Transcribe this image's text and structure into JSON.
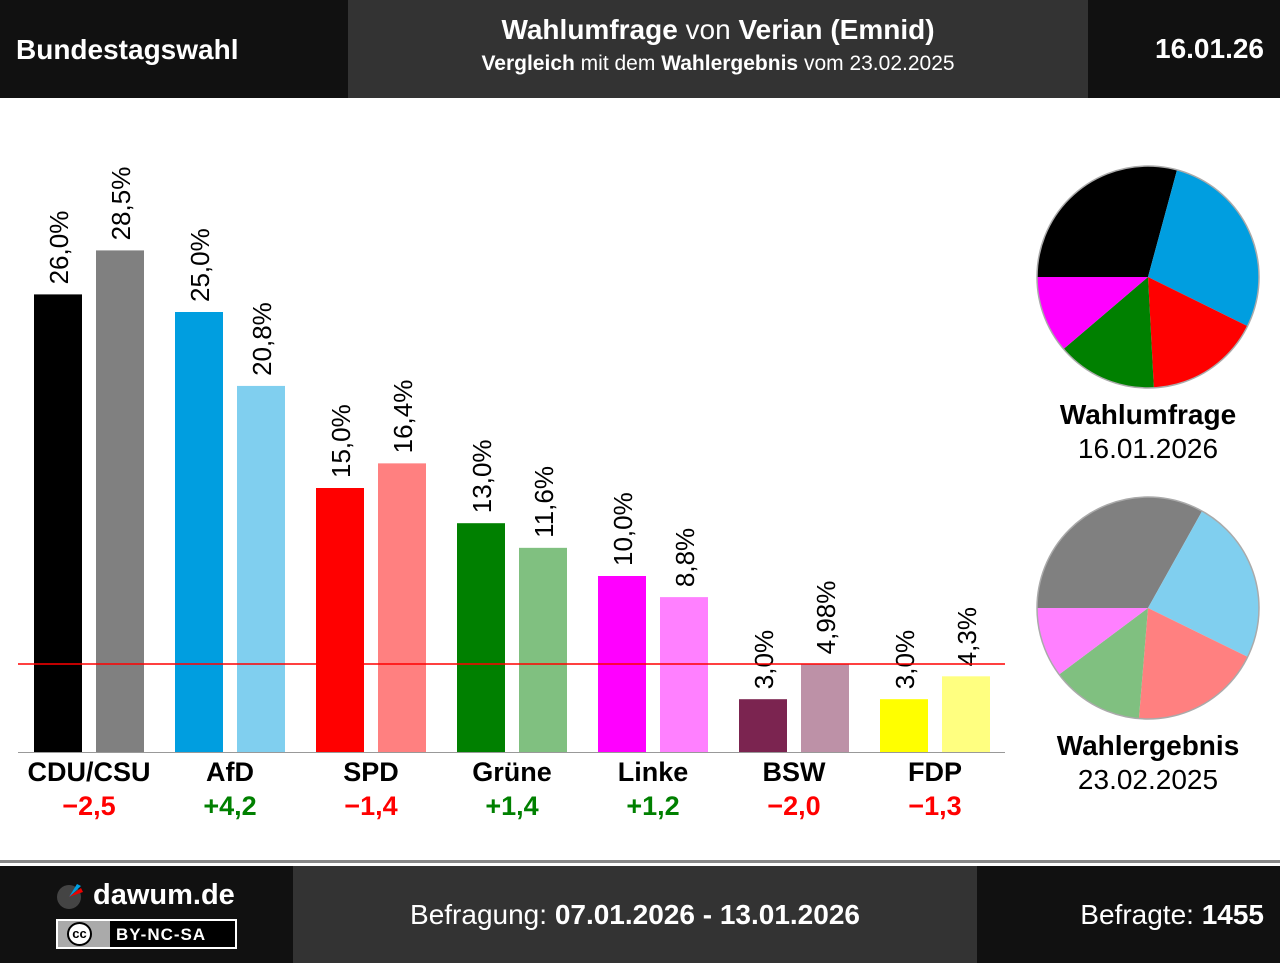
{
  "header": {
    "left": "Bundestagswahl",
    "title_bold1": "Wahlumfrage",
    "title_mid": " von ",
    "title_bold2": "Verian (Emnid)",
    "sub_bold1": "Vergleich",
    "sub_mid": " mit dem ",
    "sub_bold2": "Wahlergebnis",
    "sub_end": " vom 23.02.2025",
    "date": "16.01.26"
  },
  "footer": {
    "brand": "dawum.de",
    "license": "BY-NC-SA",
    "cc": "cc",
    "period_label": "Befragung: ",
    "period": "07.01.2026 - 13.01.2026",
    "resp_label": "Befragte: ",
    "resp": "1455"
  },
  "pies": [
    {
      "title": "Wahlumfrage",
      "date": "16.01.2026"
    },
    {
      "title": "Wahlergebnis",
      "date": "23.02.2025"
    }
  ],
  "chart_data": {
    "type": "bar",
    "categories": [
      "CDU/CSU",
      "AfD",
      "SPD",
      "Grüne",
      "Linke",
      "BSW",
      "FDP"
    ],
    "series": [
      {
        "name": "Wahlumfrage",
        "values": [
          26.0,
          25.0,
          15.0,
          13.0,
          10.0,
          3.0,
          3.0
        ],
        "labels": [
          "26,0%",
          "25,0%",
          "15,0%",
          "13,0%",
          "10,0%",
          "3,0%",
          "3,0%"
        ],
        "colors": [
          "#000000",
          "#009ee0",
          "#ff0000",
          "#008000",
          "#ff00ff",
          "#7b2450",
          "#ffff00"
        ]
      },
      {
        "name": "Wahlergebnis",
        "values": [
          28.5,
          20.8,
          16.4,
          11.6,
          8.8,
          4.98,
          4.3
        ],
        "labels": [
          "28,5%",
          "20,8%",
          "16,4%",
          "11,6%",
          "8,8%",
          "4,98%",
          "4,3%"
        ],
        "colors": [
          "#808080",
          "#80cfef",
          "#ff8080",
          "#80c080",
          "#ff80ff",
          "#bd91a7",
          "#ffff80"
        ]
      }
    ],
    "diffs": [
      "−2,5",
      "+4,2",
      "−1,4",
      "+1,4",
      "+1,2",
      "−2,0",
      "−1,3"
    ],
    "diff_colors": [
      "#ff0000",
      "#008000",
      "#ff0000",
      "#008000",
      "#008000",
      "#ff0000",
      "#ff0000"
    ],
    "threshold": 5,
    "threshold_color": "#ff0000"
  }
}
